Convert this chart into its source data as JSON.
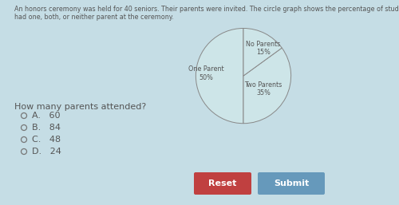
{
  "title_line1": "An honors ceremony was held for 40 seniors. Their parents were invited. The circle graph shows the percentage of students wh",
  "title_line2": "had one, both, or neither parent at the ceremony.",
  "question": "How many parents attended?",
  "choices": [
    "A.   60",
    "B.   84",
    "C.   48",
    "D.   24"
  ],
  "pie_slices": [
    50,
    35,
    15
  ],
  "pie_colors": [
    "#cde5e8",
    "#cde5e8",
    "#cde5e8"
  ],
  "pie_startangle": 90,
  "bg_color": "#c5dde5",
  "text_color": "#555555",
  "reset_color": "#c04040",
  "submit_color": "#6699bb",
  "button_text_color": "#ffffff",
  "label_one_parent": "One Parent\n50%",
  "label_two_parents": "Two Parents\n35%",
  "label_no_parents": "No Parents\n15%"
}
